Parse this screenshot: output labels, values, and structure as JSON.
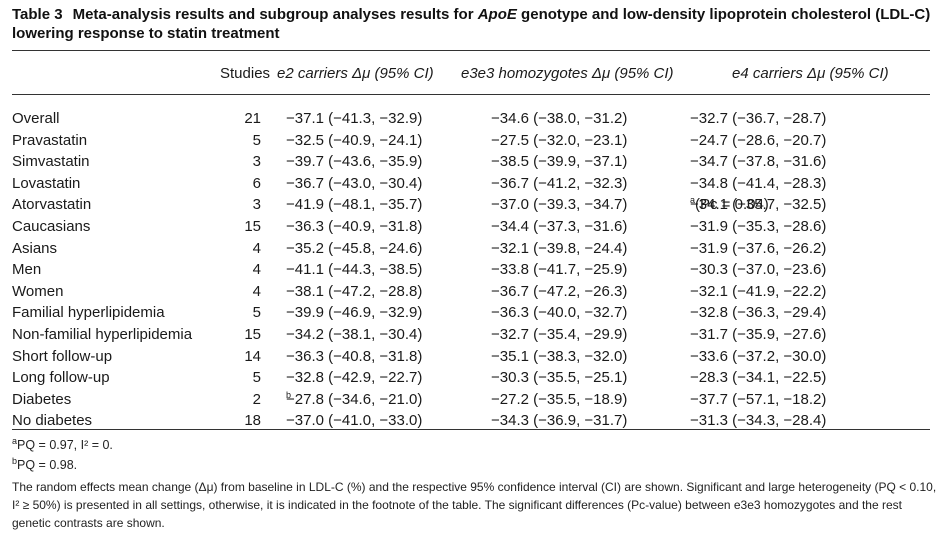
{
  "caption": {
    "label": "Table 3",
    "text_before": "Meta-analysis results and subgroup analyses results for ",
    "gene": "ApoE",
    "text_after": " genotype and low-density lipoprotein cholesterol (LDL-C) lowering response to statin treatment"
  },
  "headers": {
    "studies": "Studies",
    "e2": "e2 carriers Δμ (95% CI)",
    "e3e3": "e3e3 homozygotes Δμ (95% CI)",
    "e4": "e4 carriers Δμ (95% CI)"
  },
  "rows": [
    {
      "name": "Overall",
      "studies": "21",
      "e2": "−37.1 (−41.3, −32.9)",
      "e2_sup": "",
      "e3e3": "−34.6 (−38.0, −31.2)",
      "e4": "−32.7 (−36.7, −28.7)",
      "e4_sup": "",
      "e4_extra": ""
    },
    {
      "name": "Pravastatin",
      "studies": "5",
      "e2": "−32.5 (−40.9, −24.1)",
      "e2_sup": "",
      "e3e3": "−27.5 (−32.0, −23.1)",
      "e4": "−24.7 (−28.6, −20.7)",
      "e4_sup": "",
      "e4_extra": ""
    },
    {
      "name": "Simvastatin",
      "studies": "3",
      "e2": "−39.7 (−43.6, −35.9)",
      "e2_sup": "",
      "e3e3": "−38.5 (−39.9, −37.1)",
      "e4": "−34.7 (−37.8, −31.6)",
      "e4_sup": "",
      "e4_extra": ""
    },
    {
      "name": "Lovastatin",
      "studies": "6",
      "e2": "−36.7 (−43.0, −30.4)",
      "e2_sup": "",
      "e3e3": "−36.7 (−41.2, −32.3)",
      "e4": "−34.8 (−41.4, −28.3)",
      "e4_sup": "",
      "e4_extra": ""
    },
    {
      "name": "Atorvastatin",
      "studies": "3",
      "e2": "−41.9 (−48.1, −35.7)",
      "e2_sup": "",
      "e3e3": "−37.0 (−39.3, −34.7)",
      "e4": "−34.1 (−35.7, −32.5)",
      "e4_sup": "a",
      "e4_extra": " (Pc = 0.04)"
    },
    {
      "name": "Caucasians",
      "studies": "15",
      "e2": "−36.3 (−40.9, −31.8)",
      "e2_sup": "",
      "e3e3": "−34.4 (−37.3, −31.6)",
      "e4": "−31.9 (−35.3, −28.6)",
      "e4_sup": "",
      "e4_extra": ""
    },
    {
      "name": "Asians",
      "studies": "4",
      "e2": "−35.2 (−45.8, −24.6)",
      "e2_sup": "",
      "e3e3": "−32.1 (−39.8, −24.4)",
      "e4": "−31.9 (−37.6, −26.2)",
      "e4_sup": "",
      "e4_extra": ""
    },
    {
      "name": "Men",
      "studies": "4",
      "e2": "−41.1 (−44.3, −38.5)",
      "e2_sup": "",
      "e3e3": "−33.8 (−41.7, −25.9)",
      "e4": "−30.3 (−37.0, −23.6)",
      "e4_sup": "",
      "e4_extra": ""
    },
    {
      "name": "Women",
      "studies": "4",
      "e2": "−38.1 (−47.2, −28.8)",
      "e2_sup": "",
      "e3e3": "−36.7 (−47.2, −26.3)",
      "e4": "−32.1 (−41.9, −22.2)",
      "e4_sup": "",
      "e4_extra": ""
    },
    {
      "name": "Familial hyperlipidemia",
      "studies": "5",
      "e2": "−39.9 (−46.9, −32.9)",
      "e2_sup": "",
      "e3e3": "−36.3 (−40.0, −32.7)",
      "e4": "−32.8 (−36.3, −29.4)",
      "e4_sup": "",
      "e4_extra": ""
    },
    {
      "name": "Non-familial hyperlipidemia",
      "studies": "15",
      "e2": "−34.2 (−38.1, −30.4)",
      "e2_sup": "",
      "e3e3": "−32.7 (−35.4, −29.9)",
      "e4": "−31.7 (−35.9, −27.6)",
      "e4_sup": "",
      "e4_extra": ""
    },
    {
      "name": "Short follow-up",
      "studies": "14",
      "e2": "−36.3 (−40.8, −31.8)",
      "e2_sup": "",
      "e3e3": "−35.1 (−38.3, −32.0)",
      "e4": "−33.6 (−37.2, −30.0)",
      "e4_sup": "",
      "e4_extra": ""
    },
    {
      "name": "Long follow-up",
      "studies": "5",
      "e2": "−32.8 (−42.9, −22.7)",
      "e2_sup": "",
      "e3e3": "−30.3 (−35.5, −25.1)",
      "e4": "−28.3 (−34.1, −22.5)",
      "e4_sup": "",
      "e4_extra": ""
    },
    {
      "name": "Diabetes",
      "studies": "2",
      "e2": "−27.8 (−34.6, −21.0)",
      "e2_sup": "b",
      "e3e3": "−27.2 (−35.5, −18.9)",
      "e4": "−37.7 (−57.1, −18.2)",
      "e4_sup": "",
      "e4_extra": ""
    },
    {
      "name": "No diabetes",
      "studies": "18",
      "e2": "−37.0 (−41.0, −33.0)",
      "e2_sup": "",
      "e3e3": "−34.3 (−36.9, −31.7)",
      "e4": "−31.3 (−34.3, −28.4)",
      "e4_sup": "",
      "e4_extra": ""
    }
  ],
  "footnotes": {
    "a_mark": "a",
    "a_text": "PQ = 0.97, I² = 0.",
    "b_mark": "b",
    "b_text": "PQ = 0.98.",
    "note": "The random effects mean change (Δμ) from baseline in LDL-C (%) and the respective 95% confidence interval (CI) are shown. Significant and large heterogeneity (PQ < 0.10, I² ≥ 50%) is presented in all settings, otherwise, it is indicated in the footnote of the table. The significant differences (Pc-value) between e3e3 homozygotes and the rest genetic contrasts are shown."
  }
}
